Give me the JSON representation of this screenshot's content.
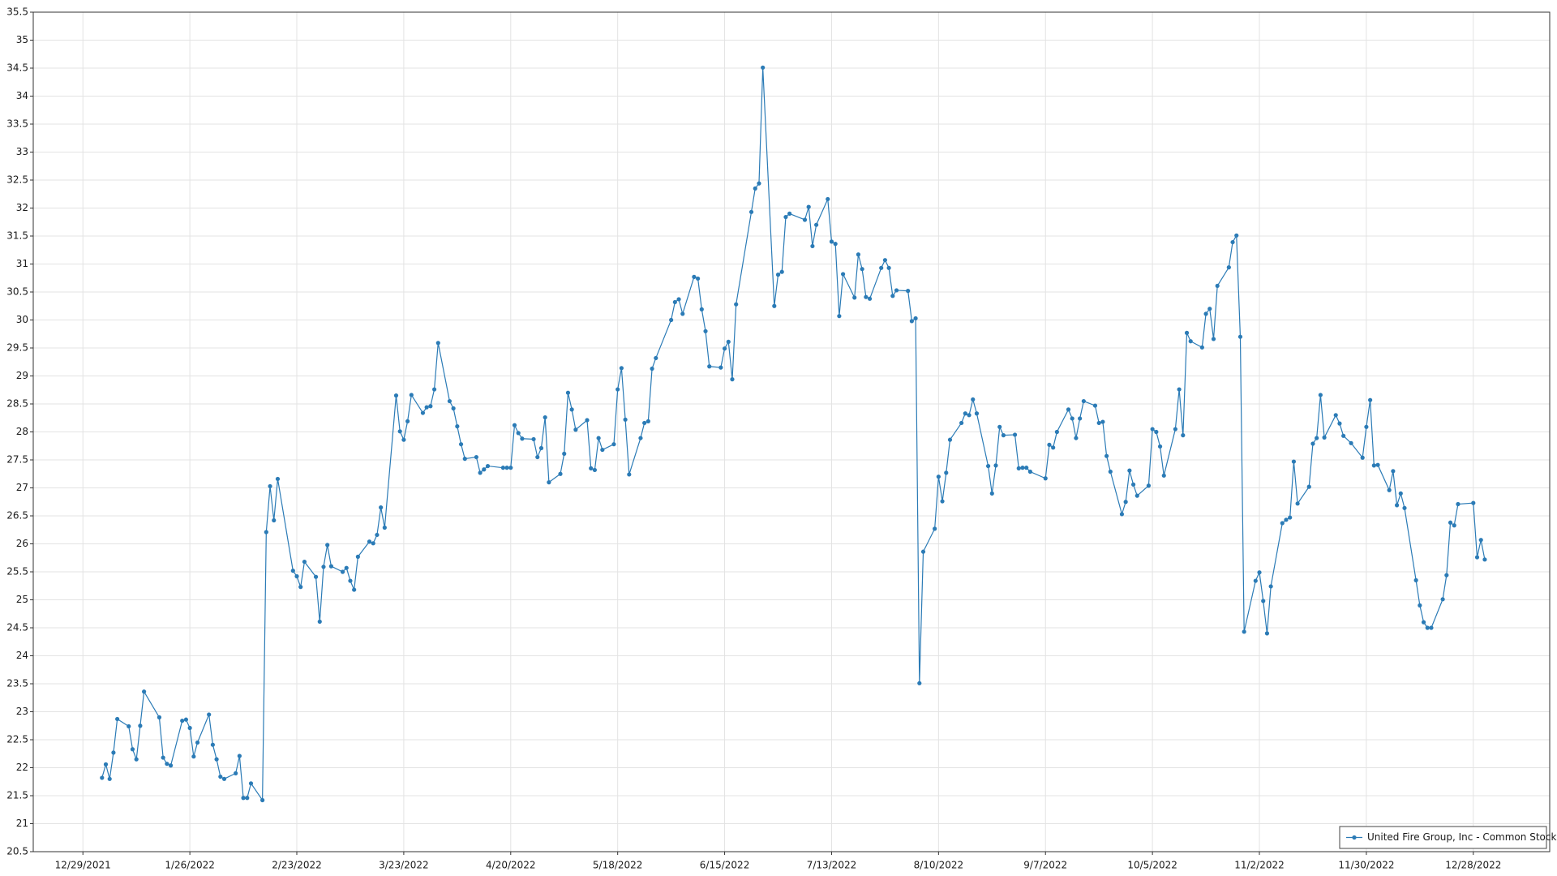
{
  "chart_data": {
    "type": "line",
    "xlim": [
      "12/16/2021",
      "1/17/2023"
    ],
    "xticks": [
      "12/29/2021",
      "1/26/2022",
      "2/23/2022",
      "3/23/2022",
      "4/20/2022",
      "5/18/2022",
      "6/15/2022",
      "7/13/2022",
      "8/10/2022",
      "9/7/2022",
      "10/5/2022",
      "11/2/2022",
      "11/30/2022",
      "12/28/2022"
    ],
    "ylim": [
      20.5,
      35.5
    ],
    "yticks": [
      20.5,
      21,
      21.5,
      22,
      22.5,
      23,
      23.5,
      24,
      24.5,
      25,
      25.5,
      26,
      26.5,
      27,
      27.5,
      28,
      28.5,
      29,
      29.5,
      30,
      30.5,
      31,
      31.5,
      32,
      32.5,
      33,
      33.5,
      34,
      34.5,
      35,
      35.5
    ],
    "grid": true,
    "legend": "lower right",
    "x": [
      "1/3/2022",
      "1/4/2022",
      "1/5/2022",
      "1/6/2022",
      "1/7/2022",
      "1/10/2022",
      "1/11/2022",
      "1/12/2022",
      "1/13/2022",
      "1/14/2022",
      "1/18/2022",
      "1/19/2022",
      "1/20/2022",
      "1/21/2022",
      "1/24/2022",
      "1/25/2022",
      "1/26/2022",
      "1/27/2022",
      "1/28/2022",
      "1/31/2022",
      "2/1/2022",
      "2/2/2022",
      "2/3/2022",
      "2/4/2022",
      "2/7/2022",
      "2/8/2022",
      "2/9/2022",
      "2/10/2022",
      "2/11/2022",
      "2/14/2022",
      "2/15/2022",
      "2/16/2022",
      "2/17/2022",
      "2/18/2022",
      "2/22/2022",
      "2/23/2022",
      "2/24/2022",
      "2/25/2022",
      "2/28/2022",
      "3/1/2022",
      "3/2/2022",
      "3/3/2022",
      "3/4/2022",
      "3/7/2022",
      "3/8/2022",
      "3/9/2022",
      "3/10/2022",
      "3/11/2022",
      "3/14/2022",
      "3/15/2022",
      "3/16/2022",
      "3/17/2022",
      "3/18/2022",
      "3/21/2022",
      "3/22/2022",
      "3/23/2022",
      "3/24/2022",
      "3/25/2022",
      "3/28/2022",
      "3/29/2022",
      "3/30/2022",
      "3/31/2022",
      "4/1/2022",
      "4/4/2022",
      "4/5/2022",
      "4/6/2022",
      "4/7/2022",
      "4/8/2022",
      "4/11/2022",
      "4/12/2022",
      "4/13/2022",
      "4/14/2022",
      "4/18/2022",
      "4/19/2022",
      "4/20/2022",
      "4/21/2022",
      "4/22/2022",
      "4/23/2022",
      "4/26/2022",
      "4/27/2022",
      "4/28/2022",
      "4/29/2022",
      "4/30/2022",
      "5/3/2022",
      "5/4/2022",
      "5/5/2022",
      "5/6/2022",
      "5/7/2022",
      "5/10/2022",
      "5/11/2022",
      "5/12/2022",
      "5/13/2022",
      "5/14/2022",
      "5/17/2022",
      "5/18/2022",
      "5/19/2022",
      "5/20/2022",
      "5/21/2022",
      "5/24/2022",
      "5/25/2022",
      "5/26/2022",
      "5/27/2022",
      "5/28/2022",
      "6/1/2022",
      "6/2/2022",
      "6/3/2022",
      "6/4/2022",
      "6/7/2022",
      "6/8/2022",
      "6/9/2022",
      "6/10/2022",
      "6/11/2022",
      "6/14/2022",
      "6/15/2022",
      "6/16/2022",
      "6/17/2022",
      "6/18/2022",
      "6/22/2022",
      "6/23/2022",
      "6/24/2022",
      "6/25/2022",
      "6/28/2022",
      "6/29/2022",
      "6/30/2022",
      "7/1/2022",
      "7/2/2022",
      "7/6/2022",
      "7/7/2022",
      "7/8/2022",
      "7/9/2022",
      "7/12/2022",
      "7/13/2022",
      "7/14/2022",
      "7/15/2022",
      "7/16/2022",
      "7/19/2022",
      "7/20/2022",
      "7/21/2022",
      "7/22/2022",
      "7/23/2022",
      "7/26/2022",
      "7/27/2022",
      "7/28/2022",
      "7/29/2022",
      "7/30/2022",
      "8/2/2022",
      "8/3/2022",
      "8/4/2022",
      "8/5/2022",
      "8/6/2022",
      "8/9/2022",
      "8/10/2022",
      "8/11/2022",
      "8/12/2022",
      "8/13/2022",
      "8/16/2022",
      "8/17/2022",
      "8/18/2022",
      "8/19/2022",
      "8/20/2022",
      "8/23/2022",
      "8/24/2022",
      "8/25/2022",
      "8/26/2022",
      "8/27/2022",
      "8/30/2022",
      "8/31/2022",
      "9/1/2022",
      "9/2/2022",
      "9/3/2022",
      "9/7/2022",
      "9/8/2022",
      "9/9/2022",
      "9/10/2022",
      "9/13/2022",
      "9/14/2022",
      "9/15/2022",
      "9/16/2022",
      "9/17/2022",
      "9/20/2022",
      "9/21/2022",
      "9/22/2022",
      "9/23/2022",
      "9/24/2022",
      "9/27/2022",
      "9/28/2022",
      "9/29/2022",
      "9/30/2022",
      "10/1/2022",
      "10/4/2022",
      "10/5/2022",
      "10/6/2022",
      "10/7/2022",
      "10/8/2022",
      "10/11/2022",
      "10/12/2022",
      "10/13/2022",
      "10/14/2022",
      "10/15/2022",
      "10/18/2022",
      "10/19/2022",
      "10/20/2022",
      "10/21/2022",
      "10/22/2022",
      "10/25/2022",
      "10/26/2022",
      "10/27/2022",
      "10/28/2022",
      "10/29/2022",
      "11/1/2022",
      "11/2/2022",
      "11/3/2022",
      "11/4/2022",
      "11/5/2022",
      "11/8/2022",
      "11/9/2022",
      "11/10/2022",
      "11/11/2022",
      "11/12/2022",
      "11/15/2022",
      "11/16/2022",
      "11/17/2022",
      "11/18/2022",
      "11/19/2022",
      "11/22/2022",
      "11/23/2022",
      "11/24/2022",
      "11/26/2022",
      "11/29/2022",
      "11/30/2022",
      "12/1/2022",
      "12/2/2022",
      "12/3/2022",
      "12/6/2022",
      "12/7/2022",
      "12/8/2022",
      "12/9/2022",
      "12/10/2022",
      "12/13/2022",
      "12/14/2022",
      "12/15/2022",
      "12/16/2022",
      "12/17/2022",
      "12/20/2022",
      "12/21/2022",
      "12/22/2022",
      "12/23/2022",
      "12/24/2022",
      "12/28/2022",
      "12/29/2022",
      "12/30/2022",
      "12/31/2022"
    ],
    "series": [
      {
        "name": "United Fire Group, Inc - Common Stock",
        "color": "#2b7bb6",
        "values": [
          21.82,
          22.06,
          21.8,
          22.27,
          22.87,
          22.74,
          22.33,
          22.15,
          22.75,
          23.36,
          22.9,
          22.18,
          22.07,
          22.04,
          22.84,
          22.86,
          22.71,
          22.2,
          22.45,
          22.95,
          22.41,
          22.15,
          21.84,
          21.8,
          21.9,
          22.21,
          21.46,
          21.46,
          21.72,
          21.42,
          26.21,
          27.03,
          26.42,
          27.16,
          25.52,
          25.42,
          25.23,
          25.68,
          25.41,
          24.61,
          25.59,
          25.98,
          25.6,
          25.5,
          25.57,
          25.34,
          25.18,
          25.77,
          26.04,
          26.01,
          26.16,
          26.65,
          26.29,
          28.65,
          28.01,
          27.86,
          28.19,
          28.66,
          28.34,
          28.44,
          28.46,
          28.76,
          29.59,
          28.55,
          28.42,
          28.1,
          27.78,
          27.52,
          27.55,
          27.27,
          27.33,
          27.39,
          27.36,
          27.36,
          27.36,
          28.12,
          27.98,
          27.88,
          27.87,
          27.55,
          27.71,
          28.26,
          27.1,
          27.25,
          27.61,
          28.7,
          28.4,
          28.04,
          28.21,
          27.35,
          27.32,
          27.89,
          27.68,
          27.78,
          28.76,
          29.14,
          28.22,
          27.24,
          27.89,
          28.16,
          28.19,
          29.13,
          29.32,
          30.0,
          30.32,
          30.37,
          30.11,
          30.77,
          30.74,
          30.19,
          29.8,
          29.17,
          29.15,
          29.49,
          29.61,
          28.94,
          30.28,
          31.93,
          32.35,
          32.44,
          34.51,
          30.25,
          30.81,
          30.86,
          31.84,
          31.9,
          31.79,
          32.02,
          31.32,
          31.7,
          32.16,
          31.4,
          31.36,
          30.07,
          30.82,
          30.4,
          31.17,
          30.91,
          30.41,
          30.38,
          30.93,
          31.07,
          30.93,
          30.43,
          30.53,
          30.52,
          29.98,
          30.03,
          23.51,
          25.86,
          26.27,
          27.2,
          26.76,
          27.27,
          27.86,
          28.16,
          28.33,
          28.3,
          28.58,
          28.33,
          27.39,
          26.9,
          27.4,
          28.09,
          27.94,
          27.95,
          27.35,
          27.36,
          27.36,
          27.29,
          27.17,
          27.77,
          27.72,
          28.0,
          28.4,
          28.24,
          27.89,
          28.24,
          28.55,
          28.47,
          28.16,
          28.18,
          27.57,
          27.29,
          26.53,
          26.75,
          27.31,
          27.06,
          26.86,
          27.04,
          28.05,
          28.0,
          27.74,
          27.22,
          28.05,
          28.76,
          27.94,
          29.77,
          29.62,
          29.51,
          30.11,
          30.2,
          29.66,
          30.61,
          30.94,
          31.39,
          31.51,
          29.7,
          24.43,
          25.34,
          25.49,
          24.98,
          24.4,
          25.24,
          26.37,
          26.43,
          26.47,
          27.47,
          26.72,
          27.02,
          27.79,
          27.89,
          28.66,
          27.9,
          28.3,
          28.15,
          27.93,
          27.8,
          27.54,
          28.09,
          28.57,
          27.4,
          27.41,
          26.96,
          27.3,
          26.69,
          26.9,
          26.64,
          25.35,
          24.9,
          24.6,
          24.5,
          24.5,
          25.01,
          25.44,
          26.38,
          26.33,
          26.71,
          26.73,
          25.76,
          26.07,
          25.72
        ]
      }
    ]
  }
}
